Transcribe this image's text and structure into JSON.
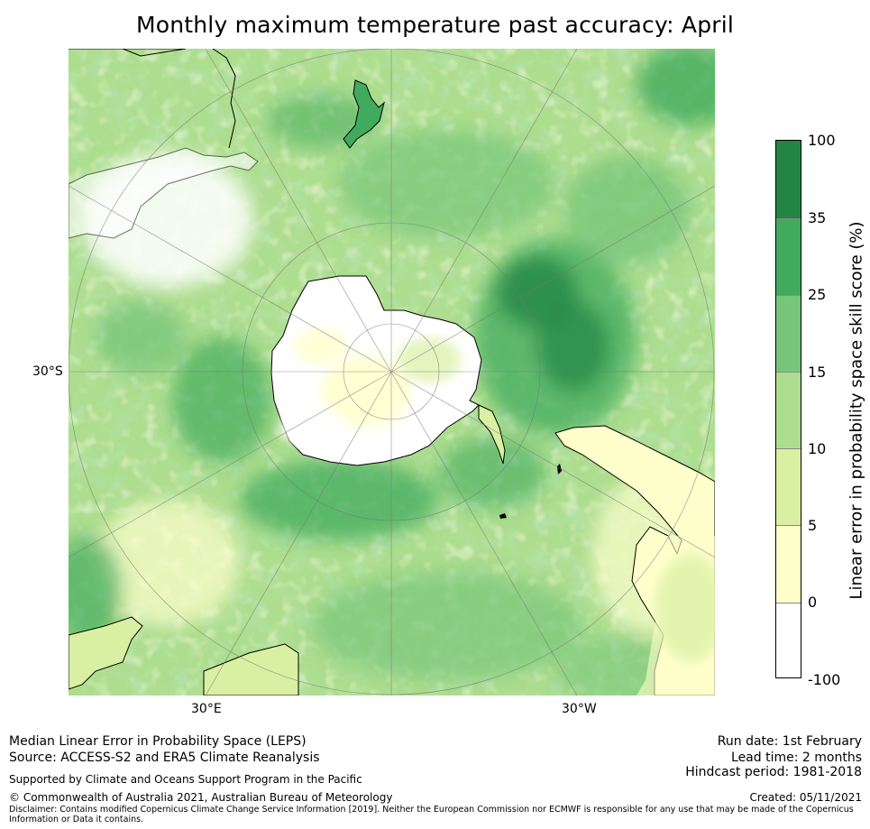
{
  "title": "Monthly maximum temperature past accuracy: April",
  "map": {
    "projection": "south-polar stereographic",
    "lat_labels": [
      "30°S"
    ],
    "lon_labels": [
      "30°E",
      "30°W"
    ],
    "colors": {
      "white": "#ffffff",
      "c0_5": "#ffffcc",
      "c5_10": "#d9f0a3",
      "c10_15": "#addd8e",
      "c15_25": "#78c679",
      "c25_35": "#41ab5d",
      "c35_100": "#238443",
      "coast": "#000000",
      "grid": "#666666"
    }
  },
  "colorbar": {
    "label": "Linear error in probability space skill score (%)",
    "ticks": [
      "100",
      "35",
      "25",
      "15",
      "10",
      "5",
      "0",
      "-100"
    ],
    "bins": [
      {
        "range": "35 to 100",
        "color": "#238443"
      },
      {
        "range": "25 to 35",
        "color": "#41ab5d"
      },
      {
        "range": "15 to 25",
        "color": "#78c679"
      },
      {
        "range": "10 to 15",
        "color": "#addd8e"
      },
      {
        "range": "5 to 10",
        "color": "#d9f0a3"
      },
      {
        "range": "0 to 5",
        "color": "#ffffcc"
      },
      {
        "range": "-100 to 0",
        "color": "#ffffff"
      }
    ]
  },
  "footer": {
    "metric": "Median Linear Error in Probability Space (LEPS)",
    "source": "Source: ACCESS-S2 and ERA5 Climate Reanalysis",
    "support": "Supported by Climate and Oceans Support Program in the Pacific",
    "copyright": "© Commonwealth of Australia 2021, Australian Bureau of Meteorology",
    "disclaimer": "Disclaimer: Contains modified Copernicus Climate Change Service Information [2019]. Neither the European Commission nor ECMWF is responsible for any use that may be made of the Copernicus Information or Data it contains.",
    "run_date": "Run date: 1st February",
    "lead_time": "Lead time: 2 months",
    "hindcast": "Hindcast period: 1981-2018",
    "created": "Created: 05/11/2021"
  }
}
